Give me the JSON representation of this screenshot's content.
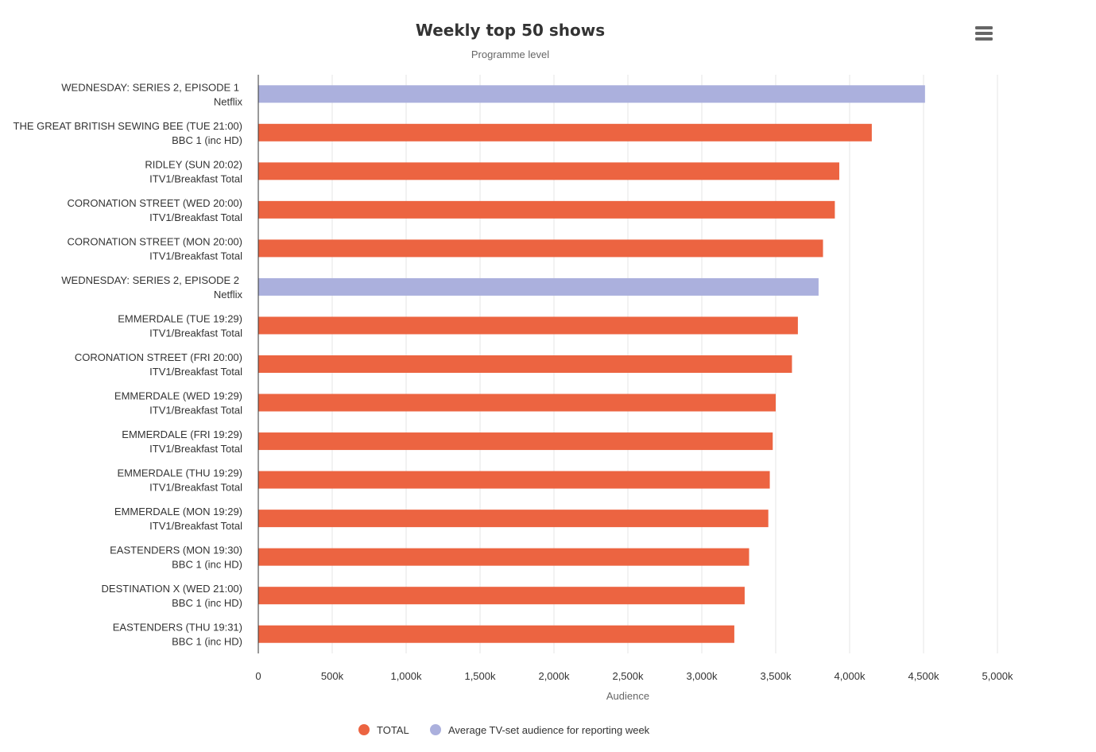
{
  "colors": {
    "total": "#ec6441",
    "netflix": "#abb0dd",
    "grid": "#e6e6e6",
    "axis": "#333333"
  },
  "icons": {
    "menu": "hamburger-menu-icon"
  },
  "chart_data": {
    "type": "bar",
    "orientation": "horizontal",
    "title": "Weekly top 50 shows",
    "subtitle": "Programme level",
    "xlabel": "Audience",
    "xlim": [
      0,
      5000
    ],
    "x_ticks": [
      0,
      500,
      1000,
      1500,
      2000,
      2500,
      3000,
      3500,
      4000,
      4500,
      5000
    ],
    "x_tick_labels": [
      "0",
      "500k",
      "1,000k",
      "1,500k",
      "2,000k",
      "2,500k",
      "3,000k",
      "3,500k",
      "4,000k",
      "4,500k",
      "5,000k"
    ],
    "grid": true,
    "legend_position": "bottom-center",
    "legend": [
      {
        "label": "TOTAL",
        "series": "total"
      },
      {
        "label": "Average TV-set audience for reporting week",
        "series": "netflix"
      }
    ],
    "bars": [
      {
        "title": "WEDNESDAY: SERIES 2, EPISODE 1",
        "channel": "Netflix",
        "value": 4510,
        "series": "netflix"
      },
      {
        "title": "THE GREAT BRITISH SEWING BEE (TUE 21:00)",
        "channel": "BBC 1 (inc HD)",
        "value": 4150,
        "series": "total"
      },
      {
        "title": "RIDLEY (SUN 20:02)",
        "channel": "ITV1/Breakfast Total",
        "value": 3930,
        "series": "total"
      },
      {
        "title": "CORONATION STREET (WED 20:00)",
        "channel": "ITV1/Breakfast Total",
        "value": 3900,
        "series": "total"
      },
      {
        "title": "CORONATION STREET (MON 20:00)",
        "channel": "ITV1/Breakfast Total",
        "value": 3820,
        "series": "total"
      },
      {
        "title": "WEDNESDAY: SERIES 2, EPISODE 2",
        "channel": "Netflix",
        "value": 3790,
        "series": "netflix"
      },
      {
        "title": "EMMERDALE (TUE 19:29)",
        "channel": "ITV1/Breakfast Total",
        "value": 3650,
        "series": "total"
      },
      {
        "title": "CORONATION STREET (FRI 20:00)",
        "channel": "ITV1/Breakfast Total",
        "value": 3610,
        "series": "total"
      },
      {
        "title": "EMMERDALE (WED 19:29)",
        "channel": "ITV1/Breakfast Total",
        "value": 3500,
        "series": "total"
      },
      {
        "title": "EMMERDALE (FRI 19:29)",
        "channel": "ITV1/Breakfast Total",
        "value": 3480,
        "series": "total"
      },
      {
        "title": "EMMERDALE (THU 19:29)",
        "channel": "ITV1/Breakfast Total",
        "value": 3460,
        "series": "total"
      },
      {
        "title": "EMMERDALE (MON 19:29)",
        "channel": "ITV1/Breakfast Total",
        "value": 3450,
        "series": "total"
      },
      {
        "title": "EASTENDERS (MON 19:30)",
        "channel": "BBC 1 (inc HD)",
        "value": 3320,
        "series": "total"
      },
      {
        "title": "DESTINATION X (WED 21:00)",
        "channel": "BBC 1 (inc HD)",
        "value": 3290,
        "series": "total"
      },
      {
        "title": "EASTENDERS (THU 19:31)",
        "channel": "BBC 1 (inc HD)",
        "value": 3220,
        "series": "total"
      }
    ]
  }
}
